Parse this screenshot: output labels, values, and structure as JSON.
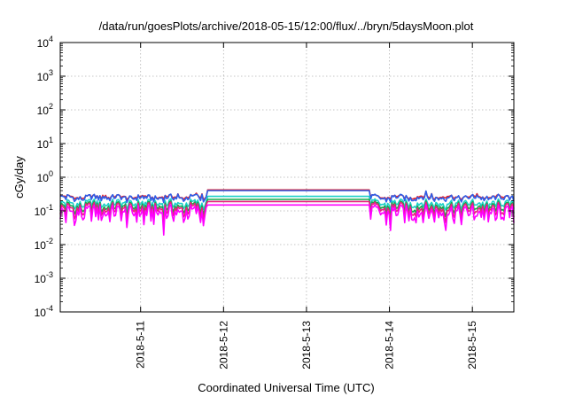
{
  "chart_data": {
    "type": "line",
    "title": "/data/run/goesPlots/archive/2018-05-15/12:00/flux/../bryn/5daysMoon.plot",
    "xlabel": "Coordinated Universal Time (UTC)",
    "ylabel": "cGy/day",
    "yscale": "log",
    "ylim": [
      0.0001,
      10000
    ],
    "yticks": [
      {
        "value": 0.0001,
        "base": "10",
        "exp": "-4"
      },
      {
        "value": 0.001,
        "base": "10",
        "exp": "-3"
      },
      {
        "value": 0.01,
        "base": "10",
        "exp": "-2"
      },
      {
        "value": 0.1,
        "base": "10",
        "exp": "-1"
      },
      {
        "value": 1,
        "base": "10",
        "exp": "0"
      },
      {
        "value": 10,
        "base": "10",
        "exp": "1"
      },
      {
        "value": 100,
        "base": "10",
        "exp": "2"
      },
      {
        "value": 1000,
        "base": "10",
        "exp": "3"
      },
      {
        "value": 10000,
        "base": "10",
        "exp": "4"
      }
    ],
    "xlim": [
      "2018-05-10T00:45",
      "2018-05-15T12:00"
    ],
    "xticks": [
      "2018-5-11",
      "2018-5-12",
      "2018-5-13",
      "2018-5-14",
      "2018-5-15"
    ],
    "grid": true,
    "legend": "none",
    "series": [
      {
        "color": "#e8202a",
        "level": 0.42
      },
      {
        "color": "#2c5ee8",
        "level": 0.4
      },
      {
        "color": "#1bd0c8",
        "level": 0.27
      },
      {
        "color": "#16a84a",
        "level": 0.22
      },
      {
        "color": "#e8207e",
        "level": 0.19
      },
      {
        "color": "#ff00ff",
        "level": 0.15
      }
    ]
  }
}
